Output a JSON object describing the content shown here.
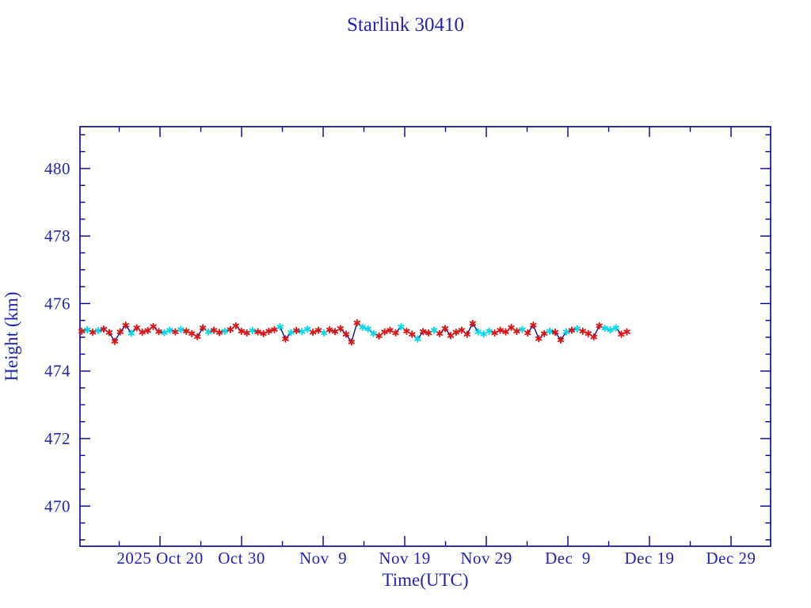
{
  "page": {
    "background_color": "#ffffff"
  },
  "chart_data": {
    "type": "line",
    "title": "Starlink 30410",
    "xlabel": "Time(UTC)",
    "ylabel": "Height (km)",
    "grid": false,
    "legend": "none",
    "x_axis": {
      "unit": "days relative to 2025 Oct 20 00:00 UTC",
      "range": [
        -9.81,
        74.85
      ],
      "major_ticks": [
        {
          "day": 0,
          "label": "2025 Oct 20"
        },
        {
          "day": 10,
          "label": "Oct 30"
        },
        {
          "day": 20,
          "label": "Nov  9"
        },
        {
          "day": 30,
          "label": "Nov 19"
        },
        {
          "day": 40,
          "label": "Nov 29"
        },
        {
          "day": 50,
          "label": "Dec  9"
        },
        {
          "day": 60,
          "label": "Dec 19"
        },
        {
          "day": 70,
          "label": "Dec 29"
        }
      ],
      "minor_tick_step_days": 5
    },
    "y_axis": {
      "range": [
        468.81,
        481.24
      ],
      "major_ticks": [
        470,
        472,
        474,
        476,
        478,
        480
      ],
      "major_tick_labels": [
        "470",
        "472",
        "474",
        "476",
        "478",
        "480"
      ],
      "minor_tick_step": 0.5
    },
    "colors": {
      "frame": "#00008b",
      "line": "#00008b",
      "marker_primary": "#dc1414",
      "marker_alt": "#00d9e6",
      "text": "#2323b2"
    },
    "series": [
      {
        "name": "height",
        "marker": "asterisk",
        "line_style": "solid",
        "t_start_day": -9.6,
        "t_step_days": 0.675,
        "heights": [
          475.18,
          475.22,
          475.15,
          475.2,
          475.24,
          475.14,
          474.88,
          475.16,
          475.36,
          475.12,
          475.28,
          475.15,
          475.2,
          475.32,
          475.17,
          475.14,
          475.21,
          475.16,
          475.23,
          475.18,
          475.11,
          475.02,
          475.28,
          475.16,
          475.21,
          475.14,
          475.18,
          475.23,
          475.34,
          475.18,
          475.13,
          475.2,
          475.16,
          475.11,
          475.18,
          475.23,
          475.31,
          474.95,
          475.14,
          475.2,
          475.17,
          475.24,
          475.15,
          475.21,
          475.13,
          475.22,
          475.17,
          475.26,
          475.09,
          474.86,
          475.43,
          475.3,
          475.25,
          475.11,
          475.04,
          475.16,
          475.21,
          475.13,
          475.31,
          475.18,
          475.09,
          474.95,
          475.17,
          475.13,
          475.21,
          475.11,
          475.26,
          475.05,
          475.15,
          475.21,
          475.09,
          475.41,
          475.16,
          475.1,
          475.18,
          475.13,
          475.21,
          475.16,
          475.29,
          475.18,
          475.23,
          475.13,
          475.36,
          474.96,
          475.11,
          475.18,
          475.15,
          474.92,
          475.16,
          475.21,
          475.25,
          475.18,
          475.11,
          475.01,
          475.34,
          475.27,
          475.22,
          475.28,
          475.09,
          475.16
        ],
        "alt_marker_indices": [
          1,
          3,
          9,
          15,
          16,
          18,
          23,
          26,
          31,
          36,
          38,
          40,
          41,
          44,
          51,
          52,
          53,
          58,
          61,
          64,
          72,
          73,
          74,
          80,
          85,
          88,
          90,
          95,
          96,
          97
        ]
      }
    ]
  }
}
